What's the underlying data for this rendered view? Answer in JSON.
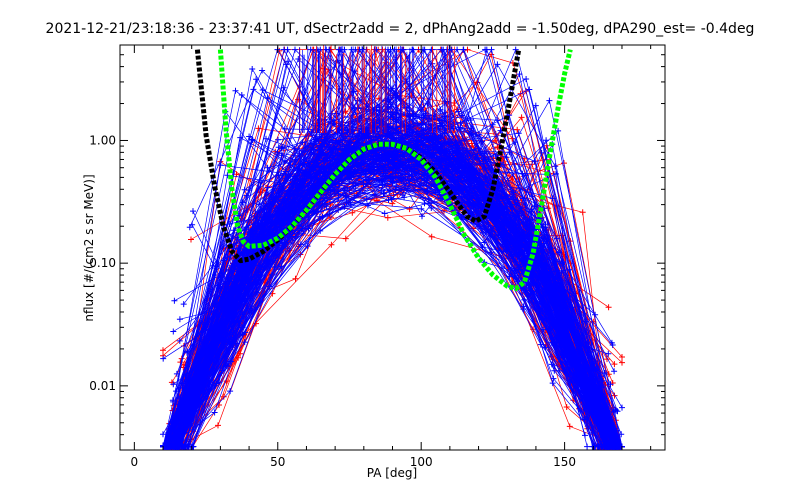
{
  "chart_data": {
    "type": "line",
    "title": "2021-12-21/23:18:36 - 23:37:41 UT, dSectr2add = 2, dPhAng2add = -1.50deg, dPA290_est=  -0.4deg",
    "xlabel": "PA [deg]",
    "ylabel": "nflux [#/(cm2 s sr MeV)]",
    "xlim": [
      -5,
      185
    ],
    "ylim": [
      0.003,
      6.0
    ],
    "yscale": "log",
    "x_ticks": [
      {
        "value": 0,
        "label": "0"
      },
      {
        "value": 50,
        "label": "50"
      },
      {
        "value": 100,
        "label": "100"
      },
      {
        "value": 150,
        "label": "150"
      }
    ],
    "y_ticks": [
      {
        "value": 0.01,
        "label": "0.01"
      },
      {
        "value": 0.1,
        "label": "0.10"
      },
      {
        "value": 1.0,
        "label": "1.00"
      }
    ],
    "grid": false,
    "legend": "none",
    "colors": {
      "red_series": "#ff0000",
      "blue_series": "#0000ff",
      "black_fit": "#000000",
      "green_fit": "#00ff00"
    },
    "series": [
      {
        "color": "#000000",
        "style": "thick-dashed",
        "x": [
          22,
          25,
          28,
          31,
          34,
          37,
          40,
          45,
          50,
          55,
          60,
          65,
          70,
          75,
          80,
          85,
          90,
          95,
          100,
          105,
          110,
          113,
          116,
          119,
          122,
          125,
          128,
          131,
          134
        ],
        "y": [
          5.5,
          1.1,
          0.42,
          0.2,
          0.125,
          0.105,
          0.108,
          0.125,
          0.155,
          0.2,
          0.27,
          0.38,
          0.53,
          0.7,
          0.85,
          0.93,
          0.93,
          0.86,
          0.72,
          0.55,
          0.38,
          0.3,
          0.24,
          0.22,
          0.24,
          0.4,
          0.9,
          2.2,
          5.5
        ]
      },
      {
        "color": "#00ff00",
        "style": "thick-dashed",
        "x": [
          30,
          32,
          34,
          36,
          38,
          40,
          45,
          50,
          55,
          60,
          65,
          70,
          75,
          80,
          85,
          90,
          95,
          100,
          105,
          110,
          115,
          120,
          125,
          130,
          133,
          136,
          139,
          142,
          145,
          148,
          150,
          152
        ],
        "y": [
          5.5,
          1.2,
          0.4,
          0.2,
          0.15,
          0.137,
          0.14,
          0.16,
          0.2,
          0.27,
          0.38,
          0.53,
          0.7,
          0.85,
          0.93,
          0.93,
          0.86,
          0.7,
          0.5,
          0.3,
          0.17,
          0.11,
          0.08,
          0.065,
          0.062,
          0.07,
          0.12,
          0.3,
          0.8,
          2.0,
          3.5,
          5.5
        ]
      }
    ]
  }
}
